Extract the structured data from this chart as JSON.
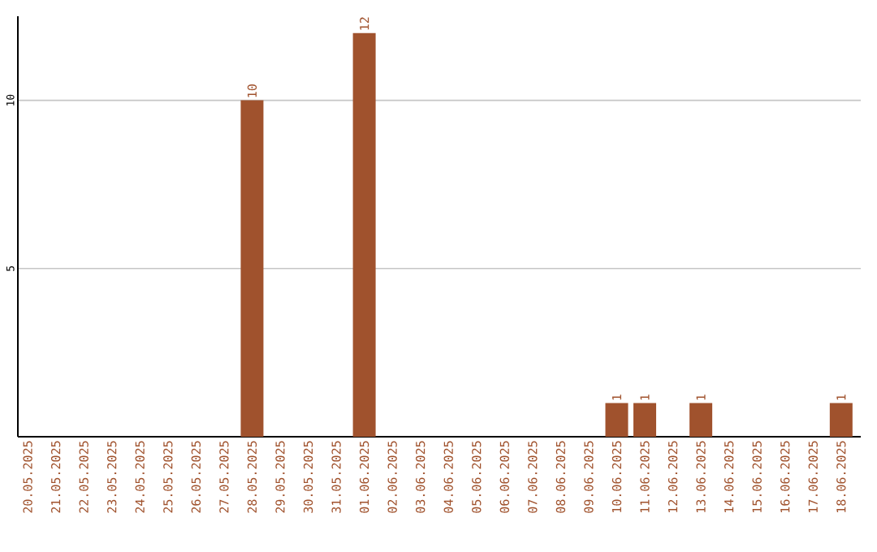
{
  "chart_data": {
    "type": "bar",
    "categories": [
      "20.05.2025",
      "21.05.2025",
      "22.05.2025",
      "23.05.2025",
      "24.05.2025",
      "25.05.2025",
      "26.05.2025",
      "27.05.2025",
      "28.05.2025",
      "29.05.2025",
      "30.05.2025",
      "31.05.2025",
      "01.06.2025",
      "02.06.2025",
      "03.06.2025",
      "04.06.2025",
      "05.06.2025",
      "06.06.2025",
      "07.06.2025",
      "08.06.2025",
      "09.06.2025",
      "10.06.2025",
      "11.06.2025",
      "12.06.2025",
      "13.06.2025",
      "14.06.2025",
      "15.06.2025",
      "16.06.2025",
      "17.06.2025",
      "18.06.2025"
    ],
    "values": [
      0,
      0,
      0,
      0,
      0,
      0,
      0,
      0,
      10,
      0,
      0,
      0,
      12,
      0,
      0,
      0,
      0,
      0,
      0,
      0,
      0,
      1,
      1,
      0,
      1,
      0,
      0,
      0,
      0,
      1
    ],
    "value_labels": [
      null,
      null,
      null,
      null,
      null,
      null,
      null,
      null,
      "10",
      null,
      null,
      null,
      "12",
      null,
      null,
      null,
      null,
      null,
      null,
      null,
      null,
      "1",
      "1",
      null,
      "1",
      null,
      null,
      null,
      null,
      "1"
    ],
    "color": "#a0522d",
    "ylim": [
      0,
      12.5
    ],
    "yticks": [
      5,
      10
    ],
    "grid": "y"
  }
}
